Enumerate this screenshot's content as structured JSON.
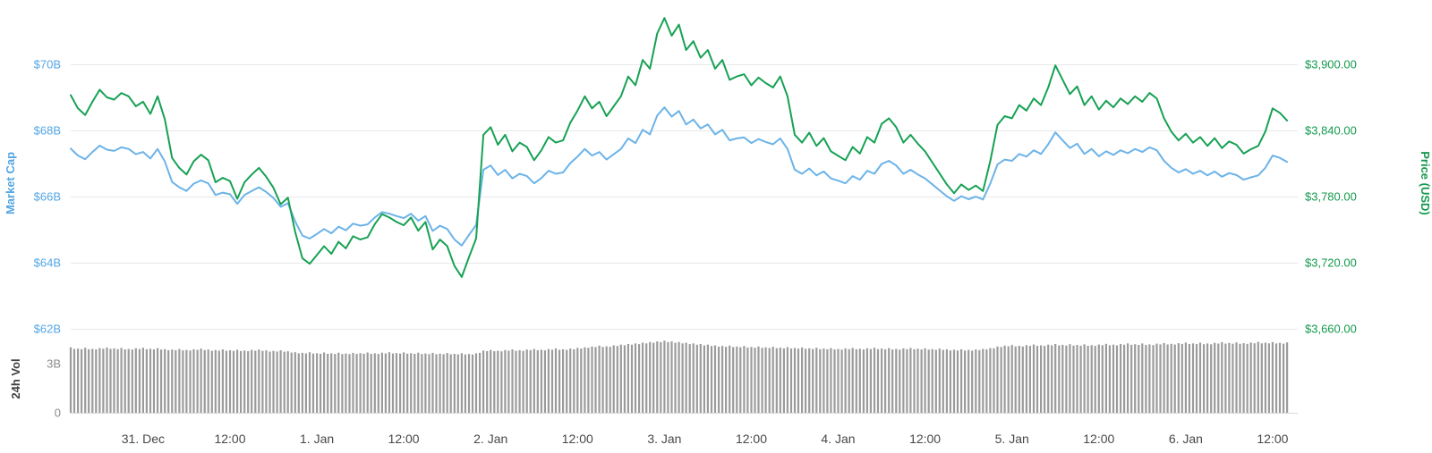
{
  "chart": {
    "left_axis_title": "Market Cap",
    "right_axis_title": "Price (USD)",
    "volume_axis_title": "24h Vol"
  },
  "colors": {
    "market_cap_blue": "#6cb3e8",
    "price_green": "#17a154",
    "volume_gray": "#9b9b9b",
    "grid": "#e8e8e8",
    "baseline": "#d9d9d9"
  },
  "chart_data": {
    "type": "line",
    "title": "",
    "legend": "none",
    "grid": true,
    "style": {
      "grid_color": "#e8e8e8",
      "baseline_color": "#d9d9d9"
    },
    "x_axis": {
      "unit": "hours",
      "total_hours": 168,
      "first_tick_hour": 10,
      "tick_interval_hours": 12,
      "tick_labels": [
        "31. Dec",
        "12:00",
        "1. Jan",
        "12:00",
        "2. Jan",
        "12:00",
        "3. Jan",
        "12:00",
        "4. Jan",
        "12:00",
        "5. Jan",
        "12:00",
        "6. Jan",
        "12:00"
      ]
    },
    "left_axis": {
      "name": "Market Cap",
      "unit": "USD billions",
      "range": [
        62,
        70
      ],
      "ticks": [
        {
          "value": 70,
          "label": "$70B"
        },
        {
          "value": 68,
          "label": "$68B"
        },
        {
          "value": 66,
          "label": "$66B"
        },
        {
          "value": 64,
          "label": "$64B"
        },
        {
          "value": 62,
          "label": "$62B"
        }
      ]
    },
    "right_axis": {
      "name": "Price (USD)",
      "unit": "USD",
      "range": [
        3660,
        3900
      ],
      "ticks": [
        {
          "value": 3900,
          "label": "$3,900.00"
        },
        {
          "value": 3840,
          "label": "$3,840.00"
        },
        {
          "value": 3780,
          "label": "$3,780.00"
        },
        {
          "value": 3720,
          "label": "$3,720.00"
        },
        {
          "value": 3660,
          "label": "$3,660.00"
        }
      ]
    },
    "volume_axis": {
      "name": "24h Vol",
      "unit": "USD billions",
      "range": [
        0,
        3
      ],
      "ticks": [
        {
          "value": 3,
          "label": "3B"
        },
        {
          "value": 0,
          "label": "0"
        }
      ]
    },
    "series": [
      {
        "name": "Market Cap",
        "axis": "left",
        "unit": "$B",
        "color": "#6cb3e8",
        "values": [
          67.45,
          67.24,
          67.13,
          67.35,
          67.54,
          67.42,
          67.38,
          67.49,
          67.44,
          67.28,
          67.35,
          67.15,
          67.44,
          67.06,
          66.44,
          66.28,
          66.17,
          66.39,
          66.49,
          66.4,
          66.05,
          66.12,
          66.07,
          65.78,
          66.05,
          66.17,
          66.28,
          66.14,
          65.96,
          65.69,
          65.8,
          65.25,
          64.82,
          64.73,
          64.87,
          65.02,
          64.89,
          65.09,
          64.98,
          65.18,
          65.12,
          65.16,
          65.37,
          65.53,
          65.48,
          65.41,
          65.35,
          65.48,
          65.27,
          65.41,
          64.96,
          65.12,
          65.02,
          64.7,
          64.52,
          64.84,
          65.14,
          66.81,
          66.94,
          66.65,
          66.81,
          66.55,
          66.69,
          66.62,
          66.4,
          66.56,
          66.78,
          66.69,
          66.73,
          67.01,
          67.21,
          67.44,
          67.24,
          67.35,
          67.12,
          67.28,
          67.44,
          67.76,
          67.62,
          68.02,
          67.88,
          68.45,
          68.7,
          68.42,
          68.59,
          68.18,
          68.33,
          68.06,
          68.18,
          67.88,
          68.02,
          67.7,
          67.76,
          67.79,
          67.62,
          67.74,
          67.65,
          67.58,
          67.76,
          67.44,
          66.81,
          66.69,
          66.85,
          66.64,
          66.76,
          66.55,
          66.48,
          66.4,
          66.62,
          66.51,
          66.78,
          66.69,
          66.99,
          67.08,
          66.94,
          66.69,
          66.81,
          66.67,
          66.55,
          66.37,
          66.19,
          66.01,
          65.87,
          66.01,
          65.92,
          66.0,
          65.91,
          66.39,
          66.97,
          67.12,
          67.08,
          67.29,
          67.21,
          67.4,
          67.29,
          67.58,
          67.94,
          67.7,
          67.47,
          67.6,
          67.29,
          67.44,
          67.22,
          67.37,
          67.26,
          67.4,
          67.31,
          67.44,
          67.35,
          67.49,
          67.4,
          67.08,
          66.87,
          66.73,
          66.83,
          66.69,
          66.78,
          66.64,
          66.76,
          66.6,
          66.71,
          66.65,
          66.51,
          66.58,
          66.64,
          66.87,
          67.24,
          67.17,
          67.05
        ]
      },
      {
        "name": "Price (USD)",
        "axis": "right",
        "unit": "$",
        "color": "#17a154",
        "values": [
          3872,
          3860,
          3854,
          3866,
          3877,
          3870,
          3868,
          3874,
          3871,
          3862,
          3866,
          3855,
          3871,
          3850,
          3815,
          3806,
          3800,
          3812,
          3818,
          3813,
          3793,
          3797,
          3794,
          3778,
          3793,
          3800,
          3806,
          3798,
          3788,
          3773,
          3779,
          3748,
          3724,
          3719,
          3727,
          3735,
          3728,
          3739,
          3733,
          3744,
          3741,
          3743,
          3755,
          3764,
          3761,
          3757,
          3754,
          3761,
          3749,
          3757,
          3732,
          3741,
          3735,
          3717,
          3707,
          3725,
          3742,
          3836,
          3843,
          3827,
          3836,
          3821,
          3829,
          3825,
          3813,
          3822,
          3834,
          3829,
          3831,
          3847,
          3858,
          3871,
          3860,
          3866,
          3853,
          3862,
          3871,
          3889,
          3881,
          3904,
          3896,
          3928,
          3942,
          3926,
          3936,
          3913,
          3921,
          3906,
          3913,
          3896,
          3904,
          3886,
          3889,
          3891,
          3881,
          3888,
          3883,
          3879,
          3889,
          3871,
          3836,
          3829,
          3838,
          3826,
          3833,
          3821,
          3817,
          3813,
          3825,
          3819,
          3834,
          3829,
          3846,
          3851,
          3843,
          3829,
          3836,
          3828,
          3821,
          3811,
          3801,
          3791,
          3783,
          3791,
          3786,
          3790,
          3785,
          3812,
          3845,
          3853,
          3851,
          3863,
          3858,
          3869,
          3863,
          3879,
          3899,
          3886,
          3873,
          3880,
          3863,
          3871,
          3859,
          3867,
          3861,
          3869,
          3864,
          3871,
          3866,
          3874,
          3869,
          3851,
          3839,
          3831,
          3837,
          3829,
          3834,
          3826,
          3833,
          3824,
          3830,
          3827,
          3819,
          3823,
          3826,
          3839,
          3860,
          3856,
          3849
        ]
      },
      {
        "name": "24h Vol",
        "axis": "volume",
        "type": "bar",
        "unit": "$B",
        "color": "#9b9b9b",
        "values": [
          4.0,
          3.92,
          3.97,
          3.9,
          3.95,
          3.99,
          3.93,
          3.96,
          3.9,
          3.94,
          3.97,
          3.91,
          3.95,
          3.89,
          3.86,
          3.9,
          3.84,
          3.88,
          3.92,
          3.86,
          3.83,
          3.87,
          3.82,
          3.85,
          3.8,
          3.84,
          3.86,
          3.81,
          3.78,
          3.82,
          3.76,
          3.7,
          3.66,
          3.7,
          3.64,
          3.68,
          3.63,
          3.67,
          3.62,
          3.66,
          3.64,
          3.68,
          3.63,
          3.67,
          3.7,
          3.65,
          3.69,
          3.64,
          3.67,
          3.62,
          3.66,
          3.61,
          3.65,
          3.6,
          3.64,
          3.59,
          3.63,
          3.8,
          3.84,
          3.79,
          3.83,
          3.87,
          3.82,
          3.86,
          3.9,
          3.85,
          3.89,
          3.93,
          3.88,
          3.92,
          3.96,
          4.0,
          4.05,
          4.1,
          4.06,
          4.12,
          4.16,
          4.2,
          4.24,
          4.28,
          4.32,
          4.36,
          4.4,
          4.36,
          4.32,
          4.28,
          4.24,
          4.2,
          4.16,
          4.12,
          4.08,
          4.1,
          4.05,
          4.08,
          4.02,
          4.05,
          4.0,
          4.03,
          3.98,
          4.01,
          3.96,
          3.99,
          3.94,
          3.97,
          3.92,
          3.95,
          3.9,
          3.93,
          3.96,
          3.91,
          3.94,
          3.97,
          3.92,
          3.95,
          3.9,
          3.93,
          3.96,
          3.91,
          3.94,
          3.89,
          3.92,
          3.88,
          3.85,
          3.88,
          3.84,
          3.87,
          3.9,
          3.95,
          4.05,
          4.1,
          4.14,
          4.09,
          4.13,
          4.17,
          4.12,
          4.16,
          4.2,
          4.15,
          4.19,
          4.14,
          4.18,
          4.13,
          4.17,
          4.21,
          4.16,
          4.2,
          4.24,
          4.19,
          4.23,
          4.18,
          4.22,
          4.26,
          4.21,
          4.25,
          4.29,
          4.24,
          4.28,
          4.23,
          4.27,
          4.31,
          4.26,
          4.3,
          4.25,
          4.29,
          4.33,
          4.28,
          4.32,
          4.27,
          4.3
        ]
      }
    ]
  }
}
